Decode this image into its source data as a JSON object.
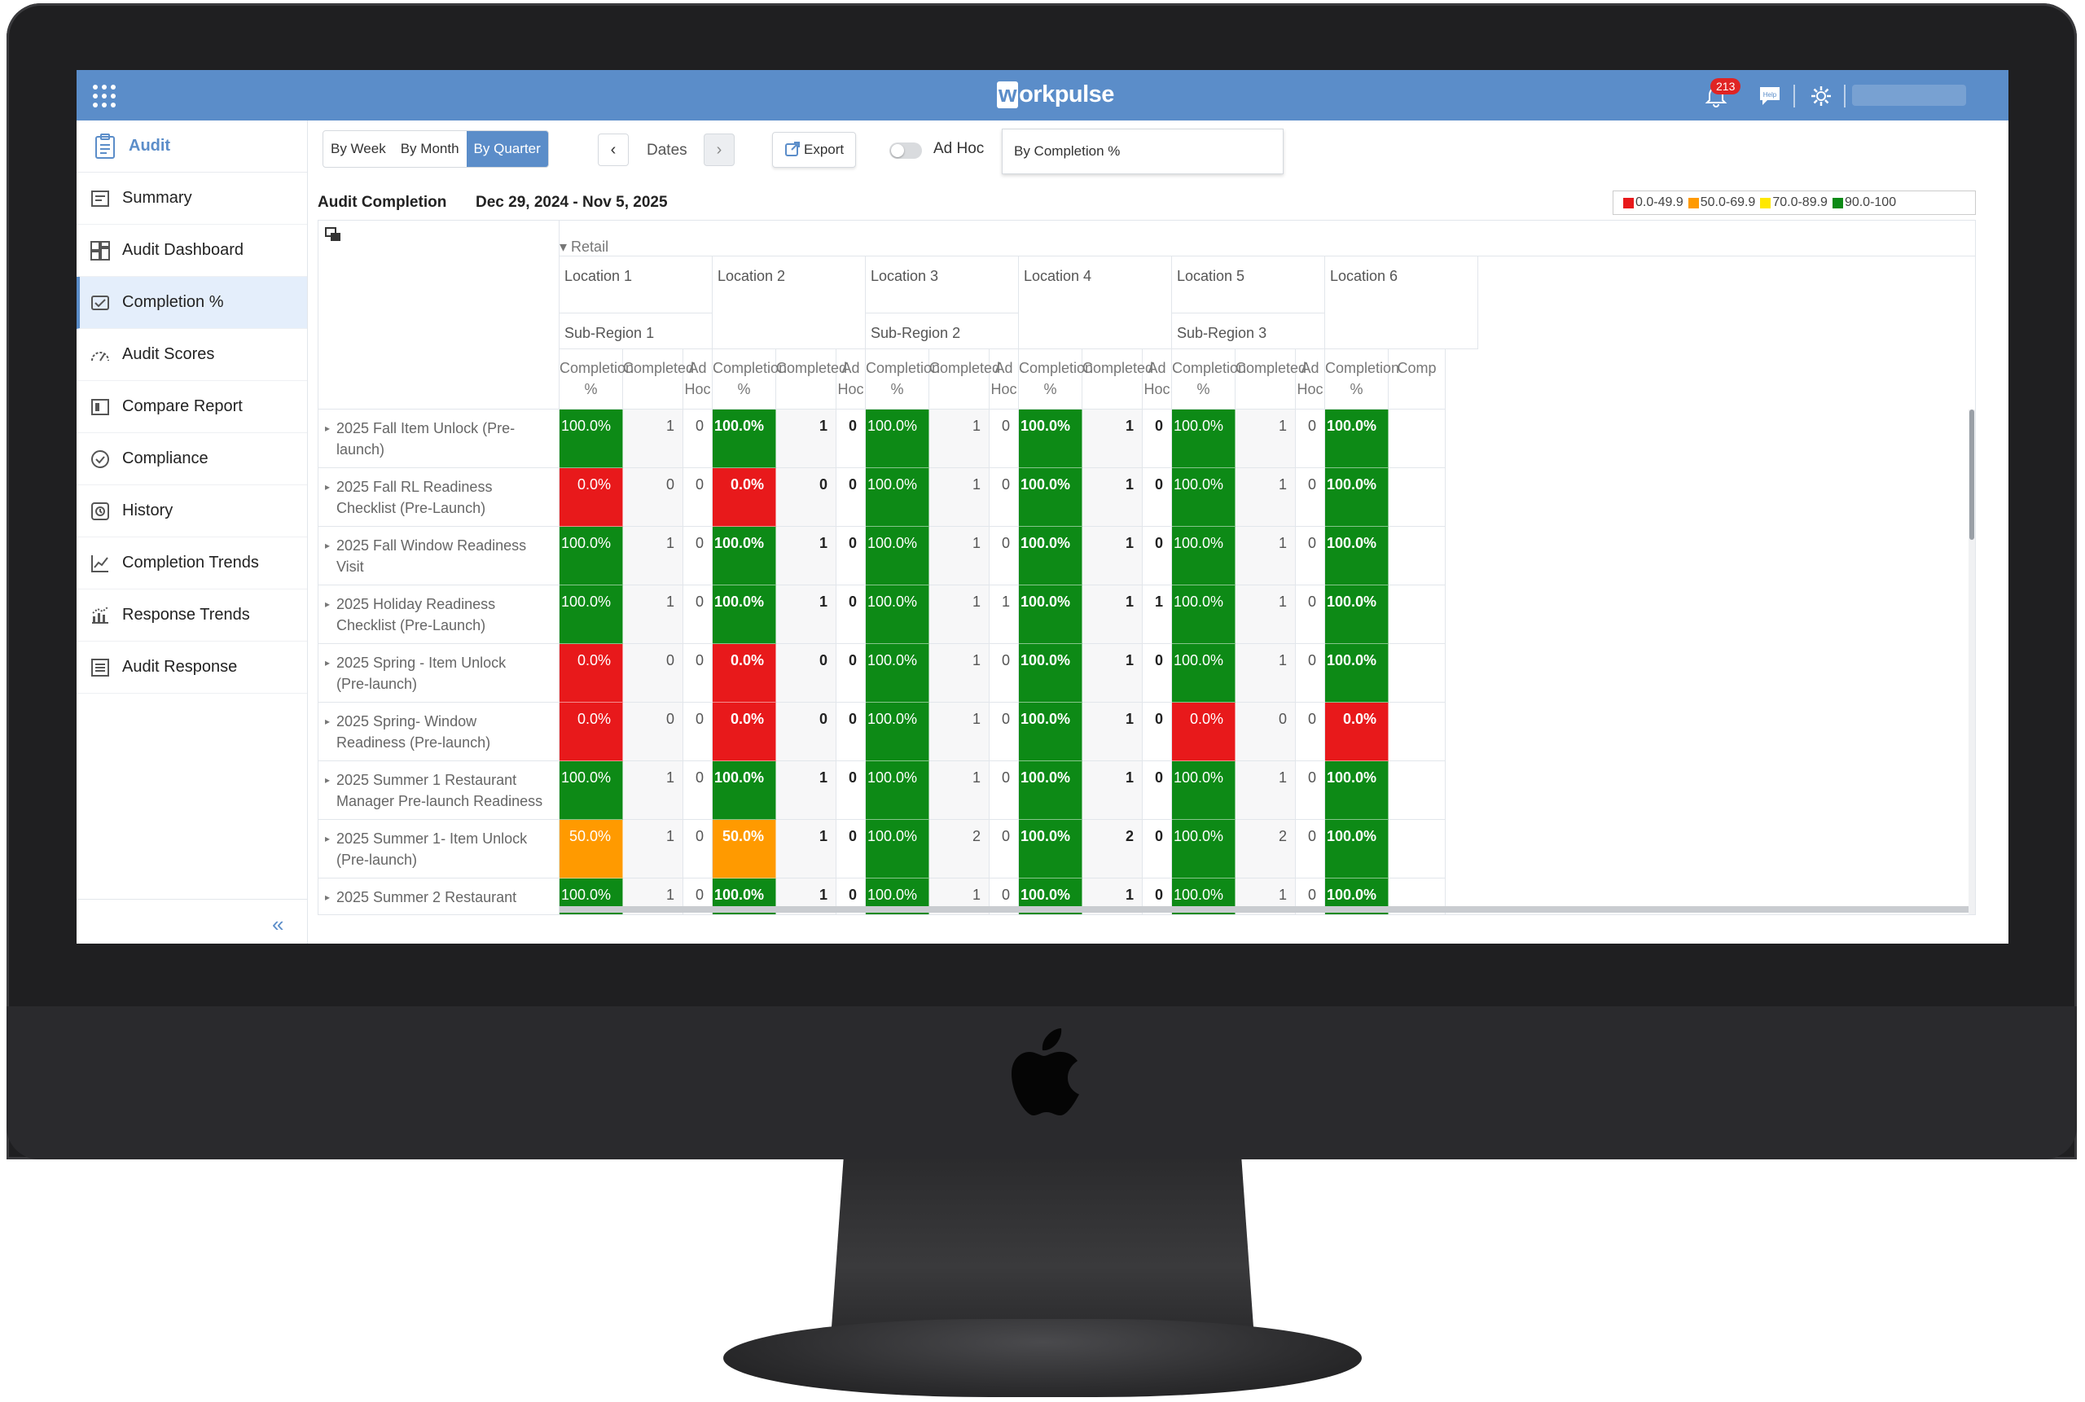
{
  "app": {
    "logo_prefix": "w",
    "logo_rest": "orkpulse",
    "notifications": "213",
    "help_label": "Help",
    "user_name": ""
  },
  "sidebar": {
    "title": "Audit",
    "items": [
      {
        "label": "Summary",
        "icon": "summary-icon"
      },
      {
        "label": "Audit Dashboard",
        "icon": "dashboard-icon"
      },
      {
        "label": "Completion %",
        "icon": "completion-icon"
      },
      {
        "label": "Audit Scores",
        "icon": "gauge-icon"
      },
      {
        "label": "Compare Report",
        "icon": "compare-icon"
      },
      {
        "label": "Compliance",
        "icon": "compliance-icon"
      },
      {
        "label": "History",
        "icon": "history-icon"
      },
      {
        "label": "Completion Trends",
        "icon": "line-chart-icon"
      },
      {
        "label": "Response Trends",
        "icon": "bar-trend-icon"
      },
      {
        "label": "Audit Response",
        "icon": "list-icon"
      }
    ],
    "active": "Completion %"
  },
  "toolbar": {
    "periods": [
      "By Week",
      "By Month",
      "By Quarter"
    ],
    "active_period": "By Quarter",
    "dates_label": "Dates",
    "export_label": "Export",
    "adhoc_label": "Ad Hoc",
    "adhoc_on": false,
    "sort_value": "By Completion %"
  },
  "report": {
    "title": "Audit Completion",
    "range": "Dec 29, 2024 - Nov 5, 2025",
    "legend": [
      {
        "label": "0.0-49.9",
        "color": "#e8191b"
      },
      {
        "label": "50.0-69.9",
        "color": "#ff9a00"
      },
      {
        "label": "70.0-89.9",
        "color": "#ffe800"
      },
      {
        "label": "90.0-100",
        "color": "#0d8a16"
      }
    ],
    "group": "Retail",
    "locations": [
      "Location 1",
      "Location 2",
      "Location 3",
      "Location 4",
      "Location 5",
      "Location 6"
    ],
    "subregions": [
      "Sub-Region 1",
      "Sub-Region 2",
      "Sub-Region 3"
    ],
    "col_headers": {
      "completion": "Completion %",
      "completion_l1": "Completion",
      "completion_l2": "%",
      "completed": "Completed",
      "adhoc_l1": "Ad",
      "adhoc_l2": "Hoc",
      "completed_cut": "Comp"
    },
    "rows": [
      {
        "name_l1": "2025 Fall Item Unlock (Pre-",
        "name_l2": "launch)",
        "cells": [
          [
            "100.0%",
            1,
            0
          ],
          [
            "100.0%",
            1,
            0
          ],
          [
            "100.0%",
            1,
            0
          ],
          [
            "100.0%",
            1,
            0
          ],
          [
            "100.0%",
            1,
            0
          ],
          [
            "100.0%"
          ]
        ]
      },
      {
        "name_l1": "2025 Fall RL Readiness",
        "name_l2": "Checklist (Pre-Launch)",
        "cells": [
          [
            "0.0%",
            0,
            0
          ],
          [
            "0.0%",
            0,
            0
          ],
          [
            "100.0%",
            1,
            0
          ],
          [
            "100.0%",
            1,
            0
          ],
          [
            "100.0%",
            1,
            0
          ],
          [
            "100.0%"
          ]
        ]
      },
      {
        "name_l1": "2025 Fall Window Readiness",
        "name_l2": "Visit",
        "cells": [
          [
            "100.0%",
            1,
            0
          ],
          [
            "100.0%",
            1,
            0
          ],
          [
            "100.0%",
            1,
            0
          ],
          [
            "100.0%",
            1,
            0
          ],
          [
            "100.0%",
            1,
            0
          ],
          [
            "100.0%"
          ]
        ]
      },
      {
        "name_l1": "2025 Holiday Readiness",
        "name_l2": "Checklist (Pre-Launch)",
        "cells": [
          [
            "100.0%",
            1,
            0
          ],
          [
            "100.0%",
            1,
            0
          ],
          [
            "100.0%",
            1,
            1
          ],
          [
            "100.0%",
            1,
            1
          ],
          [
            "100.0%",
            1,
            0
          ],
          [
            "100.0%"
          ]
        ]
      },
      {
        "name_l1": "2025 Spring - Item Unlock",
        "name_l2": "(Pre-launch)",
        "cells": [
          [
            "0.0%",
            0,
            0
          ],
          [
            "0.0%",
            0,
            0
          ],
          [
            "100.0%",
            1,
            0
          ],
          [
            "100.0%",
            1,
            0
          ],
          [
            "100.0%",
            1,
            0
          ],
          [
            "100.0%"
          ]
        ]
      },
      {
        "name_l1": "2025 Spring- Window",
        "name_l2": "Readiness (Pre-launch)",
        "cells": [
          [
            "0.0%",
            0,
            0
          ],
          [
            "0.0%",
            0,
            0
          ],
          [
            "100.0%",
            1,
            0
          ],
          [
            "100.0%",
            1,
            0
          ],
          [
            "0.0%",
            0,
            0
          ],
          [
            "0.0%"
          ]
        ]
      },
      {
        "name_l1": "2025 Summer 1 Restaurant",
        "name_l2": "Manager Pre-launch Readiness",
        "cells": [
          [
            "100.0%",
            1,
            0
          ],
          [
            "100.0%",
            1,
            0
          ],
          [
            "100.0%",
            1,
            0
          ],
          [
            "100.0%",
            1,
            0
          ],
          [
            "100.0%",
            1,
            0
          ],
          [
            "100.0%"
          ]
        ]
      },
      {
        "name_l1": "2025 Summer 1- Item Unlock",
        "name_l2": "(Pre-launch)",
        "cells": [
          [
            "50.0%",
            1,
            0
          ],
          [
            "50.0%",
            1,
            0
          ],
          [
            "100.0%",
            2,
            0
          ],
          [
            "100.0%",
            2,
            0
          ],
          [
            "100.0%",
            2,
            0
          ],
          [
            "100.0%"
          ]
        ]
      },
      {
        "name_l1": "2025 Summer 2 Restaurant",
        "name_l2": "",
        "cells": [
          [
            "100.0%",
            1,
            0
          ],
          [
            "100.0%",
            1,
            0
          ],
          [
            "100.0%",
            1,
            0
          ],
          [
            "100.0%",
            1,
            0
          ],
          [
            "100.0%",
            1,
            0
          ],
          [
            "100.0%"
          ]
        ]
      }
    ],
    "colors": {
      "red": "#e8191b",
      "orange": "#ff9a00",
      "green": "#0d8a16"
    }
  }
}
